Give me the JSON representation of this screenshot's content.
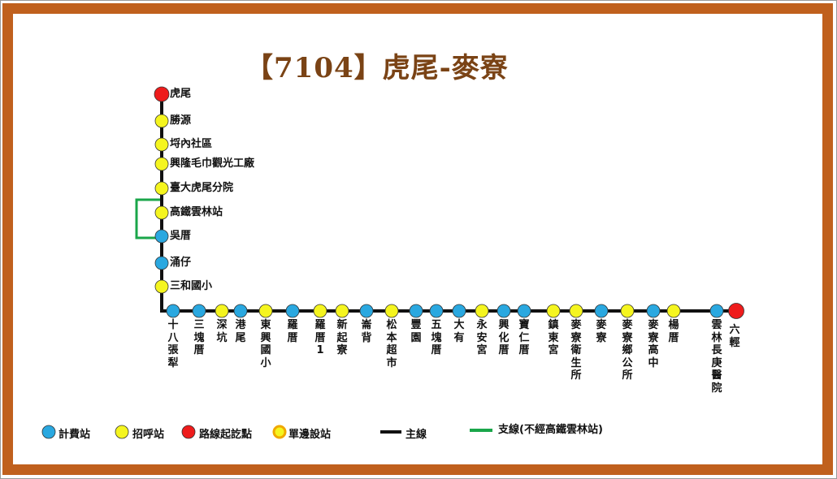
{
  "title": "【7104】虎尾-麥寮",
  "colors": {
    "frame": "#c0601d",
    "main_line": "#111111",
    "branch_line": "#1aa64a",
    "fare_stop": "#2aa8e0",
    "flag_stop": "#f5f51f",
    "terminal": "#ee1c1c",
    "one_side_ring": "#f0a800"
  },
  "vertical_stops": [
    {
      "name": "虎尾",
      "type": "terminal"
    },
    {
      "name": "勝源",
      "type": "flag"
    },
    {
      "name": "埒內社區",
      "type": "flag"
    },
    {
      "name": "興隆毛巾觀光工廠",
      "type": "flag"
    },
    {
      "name": "臺大虎尾分院",
      "type": "flag"
    },
    {
      "name": "高鐵雲林站",
      "type": "flag"
    },
    {
      "name": "吳厝",
      "type": "fare"
    },
    {
      "name": "涌仔",
      "type": "fare"
    },
    {
      "name": "三和國小",
      "type": "flag"
    }
  ],
  "horizontal_stops": [
    {
      "name": "十八張犁",
      "type": "fare"
    },
    {
      "name": "三塊厝",
      "type": "fare"
    },
    {
      "name": "深坑",
      "type": "flag"
    },
    {
      "name": "港尾",
      "type": "fare"
    },
    {
      "name": "東興國小",
      "type": "flag"
    },
    {
      "name": "羅厝",
      "type": "fare"
    },
    {
      "name": "羅厝1",
      "type": "flag"
    },
    {
      "name": "新起寮",
      "type": "flag"
    },
    {
      "name": "崙背",
      "type": "fare"
    },
    {
      "name": "松本超市",
      "type": "flag"
    },
    {
      "name": "豐園",
      "type": "fare"
    },
    {
      "name": "五塊厝",
      "type": "fare"
    },
    {
      "name": "大有",
      "type": "fare"
    },
    {
      "name": "永安宮",
      "type": "flag"
    },
    {
      "name": "興化厝",
      "type": "fare"
    },
    {
      "name": "寶仁厝",
      "type": "fare"
    },
    {
      "name": "鎮東宮",
      "type": "flag"
    },
    {
      "name": "麥寮衛生所",
      "type": "flag"
    },
    {
      "name": "麥寮",
      "type": "fare"
    },
    {
      "name": "麥寮鄉公所",
      "type": "flag"
    },
    {
      "name": "麥寮高中",
      "type": "fare"
    },
    {
      "name": "楊厝",
      "type": "flag"
    },
    {
      "name": "雲林長庚醫院",
      "type": "fare"
    },
    {
      "name": "六輕",
      "type": "terminal"
    }
  ],
  "legend": {
    "fare_stop": "計費站",
    "flag_stop": "招呼站",
    "terminal": "路線起訖點",
    "one_side_stop": "單邊設站",
    "main_line": "主線",
    "branch_line": "支線(不經高鐵雲林站)"
  }
}
